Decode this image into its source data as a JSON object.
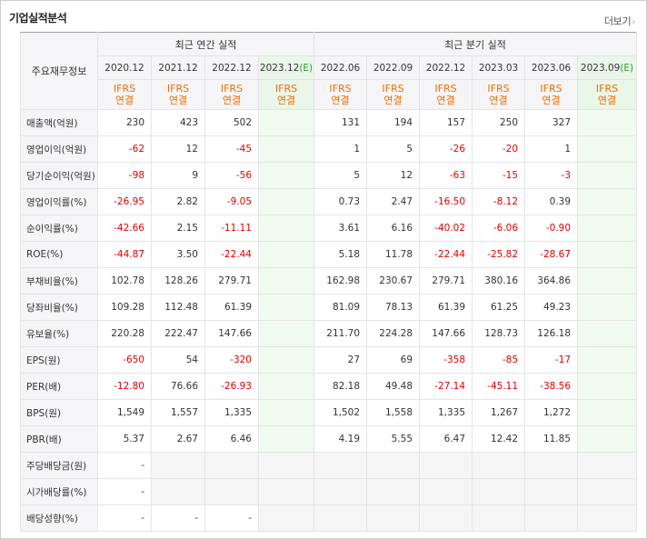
{
  "header": {
    "title": "기업실적분석",
    "more_label": "더보기",
    "more_icon": "chevron-right-icon"
  },
  "table": {
    "corner_label": "주요재무정보",
    "group_annual": "최근 연간 실적",
    "group_quarter": "최근 분기 실적",
    "ifrs_line1": "IFRS",
    "ifrs_line2": "연결",
    "periods": [
      {
        "label": "2020.12",
        "est": ""
      },
      {
        "label": "2021.12",
        "est": ""
      },
      {
        "label": "2022.12",
        "est": ""
      },
      {
        "label": "2023.12",
        "est": "(E)"
      },
      {
        "label": "2022.06",
        "est": ""
      },
      {
        "label": "2022.09",
        "est": ""
      },
      {
        "label": "2022.12",
        "est": ""
      },
      {
        "label": "2023.03",
        "est": ""
      },
      {
        "label": "2023.06",
        "est": ""
      },
      {
        "label": "2023.09",
        "est": "(E)"
      }
    ],
    "rows": [
      {
        "label": "매출액(억원)",
        "values": [
          "230",
          "423",
          "502",
          "",
          "131",
          "194",
          "157",
          "250",
          "327",
          ""
        ]
      },
      {
        "label": "영업이익(억원)",
        "values": [
          "-62",
          "12",
          "-45",
          "",
          "1",
          "5",
          "-26",
          "-20",
          "1",
          ""
        ]
      },
      {
        "label": "당기순이익(억원)",
        "values": [
          "-98",
          "9",
          "-56",
          "",
          "5",
          "12",
          "-63",
          "-15",
          "-3",
          ""
        ]
      },
      {
        "label": "영업이익률(%)",
        "values": [
          "-26.95",
          "2.82",
          "-9.05",
          "",
          "0.73",
          "2.47",
          "-16.50",
          "-8.12",
          "0.39",
          ""
        ]
      },
      {
        "label": "순이익률(%)",
        "values": [
          "-42.66",
          "2.15",
          "-11.11",
          "",
          "3.61",
          "6.16",
          "-40.02",
          "-6.06",
          "-0.90",
          ""
        ]
      },
      {
        "label": "ROE(%)",
        "values": [
          "-44.87",
          "3.50",
          "-22.44",
          "",
          "5.18",
          "11.78",
          "-22.44",
          "-25.82",
          "-28.67",
          ""
        ]
      },
      {
        "label": "부채비율(%)",
        "values": [
          "102.78",
          "128.26",
          "279.71",
          "",
          "162.98",
          "230.67",
          "279.71",
          "380.16",
          "364.86",
          ""
        ]
      },
      {
        "label": "당좌비율(%)",
        "values": [
          "109.28",
          "112.48",
          "61.39",
          "",
          "81.09",
          "78.13",
          "61.39",
          "61.25",
          "49.23",
          ""
        ]
      },
      {
        "label": "유보율(%)",
        "values": [
          "220.28",
          "222.47",
          "147.66",
          "",
          "211.70",
          "224.28",
          "147.66",
          "128.73",
          "126.18",
          ""
        ]
      },
      {
        "label": "EPS(원)",
        "values": [
          "-650",
          "54",
          "-320",
          "",
          "27",
          "69",
          "-358",
          "-85",
          "-17",
          ""
        ]
      },
      {
        "label": "PER(배)",
        "values": [
          "-12.80",
          "76.66",
          "-26.93",
          "",
          "82.18",
          "49.48",
          "-27.14",
          "-45.11",
          "-38.56",
          ""
        ]
      },
      {
        "label": "BPS(원)",
        "values": [
          "1,549",
          "1,557",
          "1,335",
          "",
          "1,502",
          "1,558",
          "1,335",
          "1,267",
          "1,272",
          ""
        ]
      },
      {
        "label": "PBR(배)",
        "values": [
          "5.37",
          "2.67",
          "6.46",
          "",
          "4.19",
          "5.55",
          "6.47",
          "12.42",
          "11.85",
          ""
        ]
      },
      {
        "label": "주당배당금(원)",
        "values": [
          "-",
          null,
          null,
          null,
          null,
          null,
          null,
          null,
          null,
          null
        ]
      },
      {
        "label": "시가배당률(%)",
        "values": [
          "-",
          null,
          null,
          null,
          null,
          null,
          null,
          null,
          null,
          null
        ]
      },
      {
        "label": "배당성향(%)",
        "values": [
          "-",
          "-",
          "-",
          null,
          null,
          null,
          null,
          null,
          null,
          null
        ]
      }
    ]
  },
  "colors": {
    "negative": "#e00000",
    "ifrs": "#ef6c00",
    "estimate": "#2e9b2e"
  }
}
